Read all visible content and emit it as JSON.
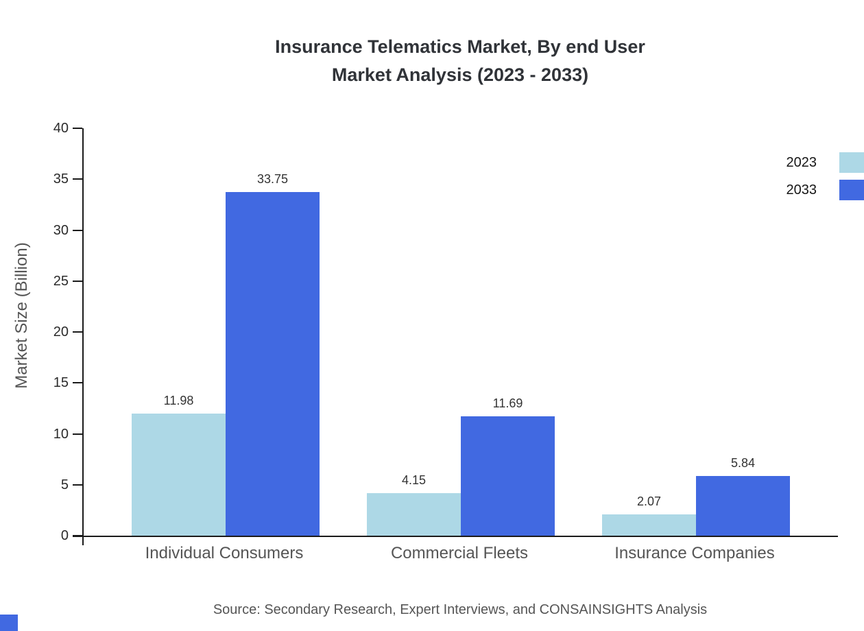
{
  "title": {
    "line1": "Insurance Telematics Market, By end User",
    "line2": "Market Analysis (2023 - 2033)"
  },
  "source": "Source: Secondary Research, Expert Interviews, and CONSAINSIGHTS Analysis",
  "legend": [
    {
      "label": "2023",
      "color": "#add8e6"
    },
    {
      "label": "2033",
      "color": "#4169e1"
    }
  ],
  "colors": {
    "axis": "#1a1a1a",
    "series_2023": "#add8e6",
    "series_2033": "#4169e1",
    "corner_mark": "#4169e1"
  },
  "chart_data": {
    "type": "bar",
    "title": "Insurance Telematics Market, By end User Market Analysis (2023 - 2033)",
    "categories": [
      "Individual Consumers",
      "Commercial Fleets",
      "Insurance Companies"
    ],
    "series": [
      {
        "name": "2023",
        "color": "#add8e6",
        "values": [
          11.98,
          4.15,
          2.07
        ]
      },
      {
        "name": "2033",
        "color": "#4169e1",
        "values": [
          33.75,
          11.69,
          5.84
        ]
      }
    ],
    "xlabel": "",
    "ylabel": "Market Size (Billion)",
    "ylim": [
      0,
      40
    ],
    "yticks": [
      0,
      5,
      10,
      15,
      20,
      25,
      30,
      35,
      40
    ],
    "grid": false,
    "legend_position": "top-right",
    "value_labels": true
  }
}
